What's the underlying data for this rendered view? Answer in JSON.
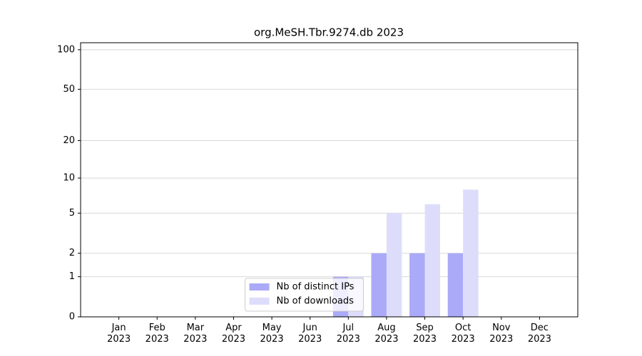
{
  "chart_data": {
    "type": "bar",
    "title": "org.MeSH.Tbr.9274.db 2023",
    "scale": "log1p",
    "categories": [
      "Jan\n2023",
      "Feb\n2023",
      "Mar\n2023",
      "Apr\n2023",
      "May\n2023",
      "Jun\n2023",
      "Jul\n2023",
      "Aug\n2023",
      "Sep\n2023",
      "Oct\n2023",
      "Nov\n2023",
      "Dec\n2023"
    ],
    "series": [
      {
        "name": "Nb of distinct IPs",
        "color": "#aaaaf8",
        "values": [
          0,
          0,
          0,
          0,
          0,
          0,
          1,
          2,
          2,
          2,
          0,
          0
        ]
      },
      {
        "name": "Nb of downloads",
        "color": "#ddddfb",
        "values": [
          0,
          0,
          0,
          0,
          0,
          0,
          1,
          5,
          6,
          8,
          0,
          0
        ]
      }
    ],
    "ylim": [
      0,
      113
    ],
    "yticks": [
      0,
      1,
      2,
      5,
      10,
      20,
      50,
      100
    ],
    "grid": true,
    "legend": "lower center"
  }
}
